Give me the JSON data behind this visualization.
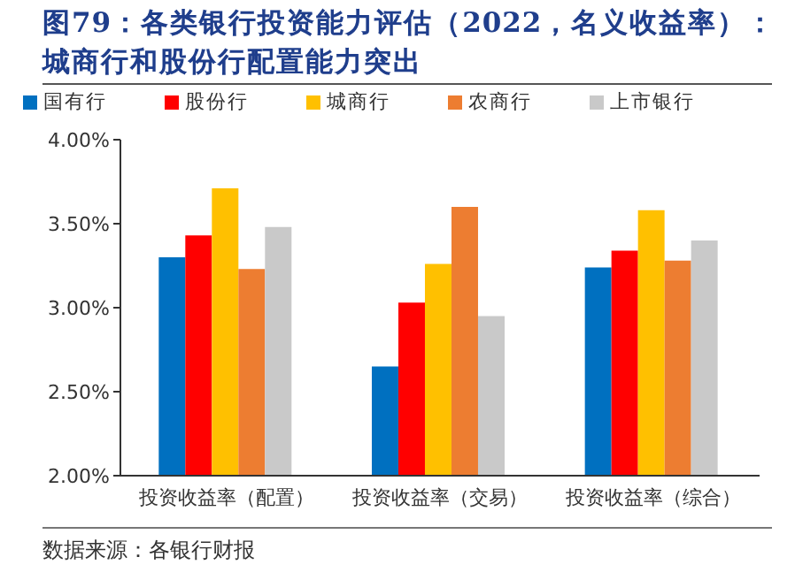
{
  "chart_data": {
    "type": "bar",
    "title": "图79：各类银行投资能力评估（2022，名义收益率）：城商行和股份行配置能力突出",
    "categories": [
      "投资收益率（配置）",
      "投资收益率（交易）",
      "投资收益率（综合）"
    ],
    "series": [
      {
        "name": "国有行",
        "color": "#0070c0",
        "values": [
          3.3,
          2.65,
          3.24
        ]
      },
      {
        "name": "股份行",
        "color": "#ff0000",
        "values": [
          3.43,
          3.03,
          3.34
        ]
      },
      {
        "name": "城商行",
        "color": "#ffc000",
        "values": [
          3.71,
          3.26,
          3.58
        ]
      },
      {
        "name": "农商行",
        "color": "#ed7d31",
        "values": [
          3.23,
          3.6,
          3.28
        ]
      },
      {
        "name": "上市银行",
        "color": "#c9c9c9",
        "values": [
          3.48,
          2.95,
          3.4
        ]
      }
    ],
    "ylim": [
      2,
      4
    ],
    "yticks": [
      {
        "value": 2,
        "label": "2.00%"
      },
      {
        "value": 2.5,
        "label": "2.50%"
      },
      {
        "value": 3,
        "label": "3.00%"
      },
      {
        "value": 3.5,
        "label": "3.50%"
      },
      {
        "value": 4,
        "label": "4.00%"
      }
    ],
    "grid": false,
    "legend": "top",
    "annotations": [
      "数据来源：各银行财报"
    ]
  }
}
